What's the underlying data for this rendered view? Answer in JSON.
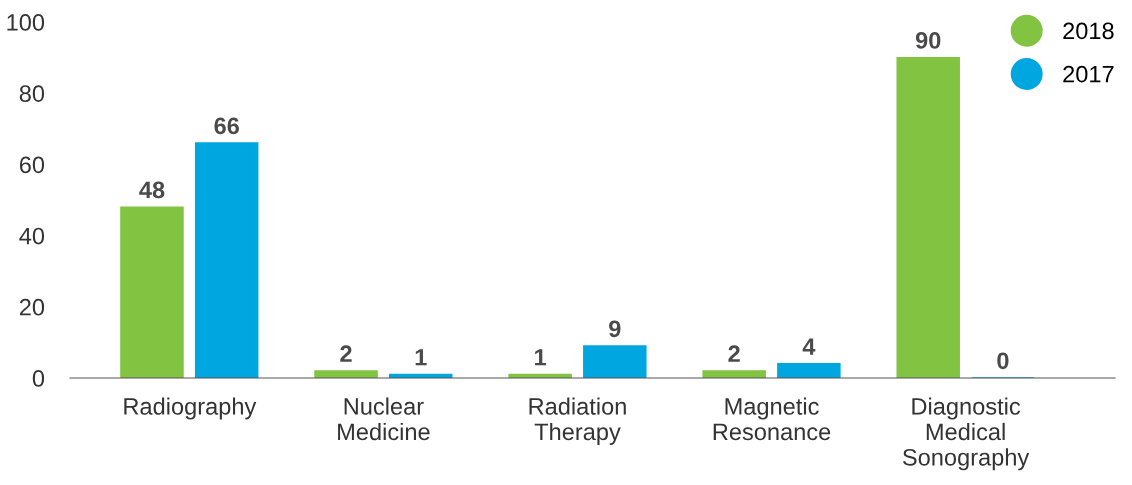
{
  "chart_data": {
    "type": "bar",
    "categories": [
      "Radiography",
      "Nuclear\nMedicine",
      "Radiation\nTherapy",
      "Magnetic\nResonance",
      "Diagnostic\nMedical\nSonography"
    ],
    "series": [
      {
        "name": "2018",
        "color": "#82c341",
        "values": [
          48,
          2,
          1,
          2,
          90
        ]
      },
      {
        "name": "2017",
        "color": "#00a6e0",
        "values": [
          66,
          1,
          9,
          4,
          0
        ]
      }
    ],
    "ylim": [
      0,
      100
    ],
    "yticks": [
      0,
      20,
      40,
      60,
      80,
      100
    ],
    "grid": false,
    "legend": "top right",
    "data_labels": true
  }
}
